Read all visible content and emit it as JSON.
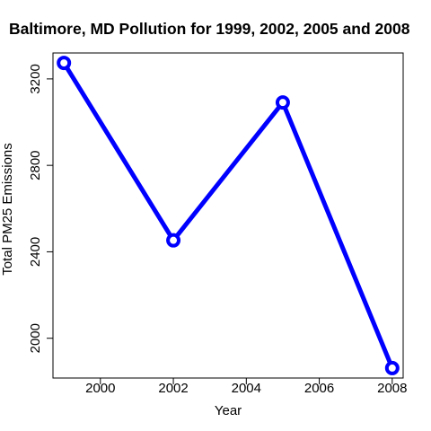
{
  "chart_data": {
    "type": "line",
    "title": "Baltimore, MD Pollution for 1999, 2002, 2005 and 2008",
    "xlabel": "Year",
    "ylabel": "Total PM25 Emissions",
    "x": [
      1999,
      2002,
      2005,
      2008
    ],
    "series": [
      {
        "values": [
          3274,
          2453,
          3091,
          1862
        ],
        "color": "#0000ff",
        "marker": "open-circle"
      }
    ],
    "xlim": [
      1998.7,
      2008.3
    ],
    "ylim": [
      1816,
      3320
    ],
    "xticks": [
      2000,
      2002,
      2004,
      2006,
      2008
    ],
    "yticks": [
      2000,
      2400,
      2800,
      3200
    ],
    "xtick_labels": [
      "2000",
      "2002",
      "2004",
      "2006",
      "2008"
    ],
    "ytick_labels": [
      "2000",
      "2400",
      "2800",
      "3200"
    ],
    "grid": false,
    "legend": "none"
  }
}
